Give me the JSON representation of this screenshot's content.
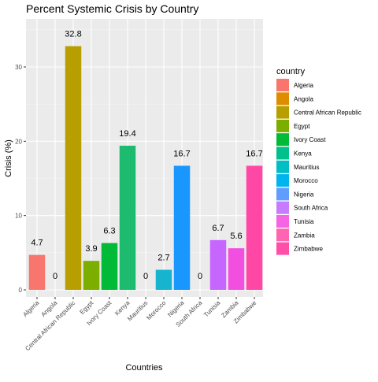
{
  "chart_data": {
    "type": "bar",
    "title": "Percent Systemic Crisis by Country",
    "xlabel": "Countries",
    "ylabel": "Crisis (%)",
    "ylim": [
      0,
      36
    ],
    "yticks": [
      0,
      10,
      20,
      30
    ],
    "grid": true,
    "legend_position": "right",
    "legend_title": "country",
    "categories": [
      "Algeria",
      "Angola",
      "Central African Republic",
      "Egypt",
      "Ivory Coast",
      "Kenya",
      "Mauritius",
      "Morocco",
      "Nigeria",
      "South Africa",
      "Tunisia",
      "Zambia",
      "Zimbabwe"
    ],
    "values": [
      4.7,
      0,
      32.8,
      3.9,
      6.3,
      19.4,
      0,
      2.7,
      16.7,
      0,
      6.7,
      5.6,
      16.7
    ],
    "data_labels": [
      "4.7",
      "0",
      "32.8",
      "3.9",
      "6.3",
      "19.4",
      "0",
      "2.7",
      "16.7",
      "0",
      "6.7",
      "5.6",
      "16.7"
    ],
    "colors": [
      "#F8766D",
      "#DE8C00",
      "#B79F00",
      "#7CAE00",
      "#00BA38",
      "#00C08B",
      "#00BFC4",
      "#00B4F0",
      "#619CFF",
      "#C77CFF",
      "#F564E3",
      "#FF64B0",
      "#FF4FA8"
    ],
    "bar_colors": [
      "#F8766D",
      "#DE8C00",
      "#B79F00",
      "#7CAE00",
      "#00BA38",
      "#1DBB6E",
      "#00C08B",
      "#17B4D0",
      "#1A96FF",
      "#8F7DF8",
      "#C765FF",
      "#F24FE0",
      "#FF47A6"
    ],
    "panel_background": "#EBEBEB",
    "grid_color": "#FFFFFF"
  }
}
